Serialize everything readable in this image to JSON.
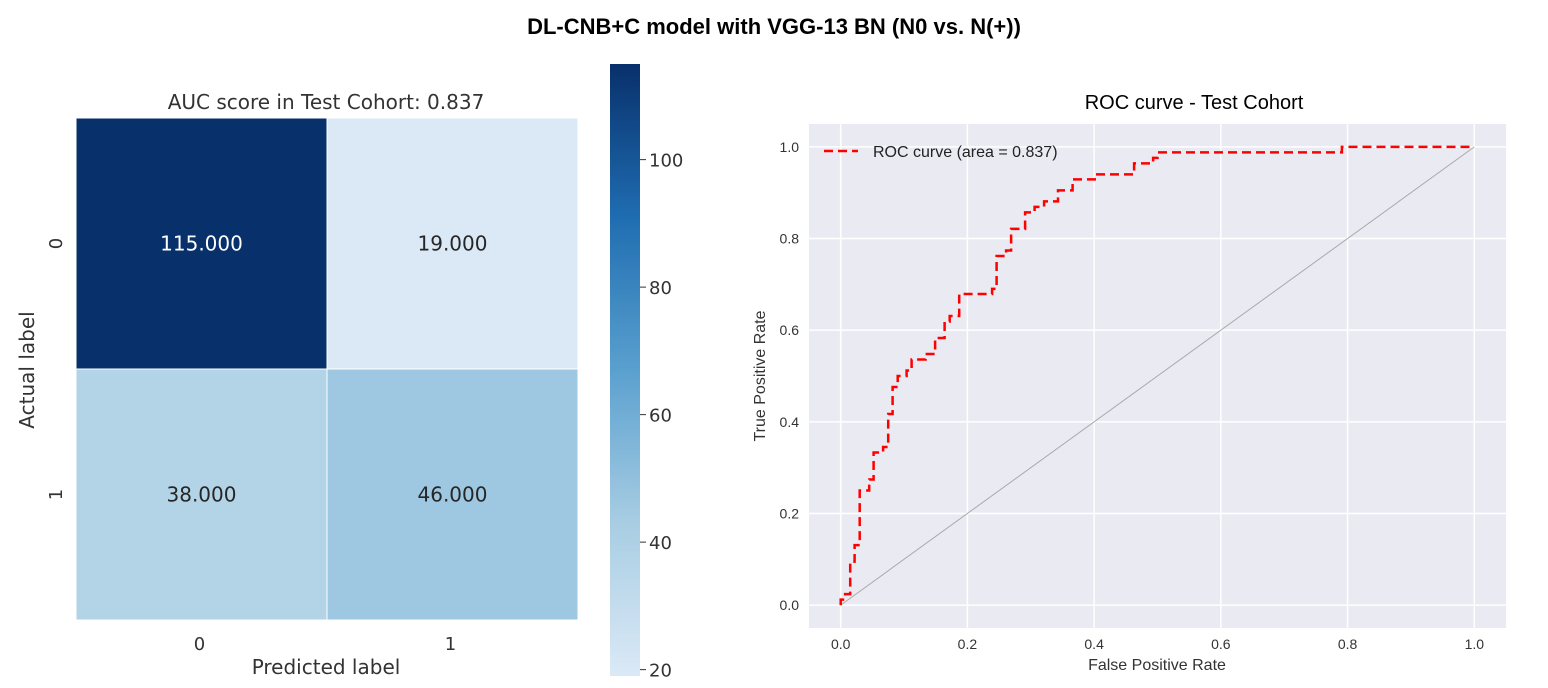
{
  "figure": {
    "title": "DL-CNB+C model with VGG-13 BN (N0 vs. N(+))"
  },
  "chart_data": [
    {
      "type": "heatmap",
      "title": "AUC score in Test Cohort: 0.837",
      "xlabel": "Predicted label",
      "ylabel": "Actual label",
      "x_categories": [
        "0",
        "1"
      ],
      "y_categories": [
        "0",
        "1"
      ],
      "values": [
        [
          115,
          19
        ],
        [
          38,
          46
        ]
      ],
      "cell_labels": [
        [
          "115.000",
          "19.000"
        ],
        [
          "38.000",
          "46.000"
        ]
      ],
      "colorbar": {
        "range": [
          19,
          115
        ],
        "ticks": [
          20,
          40,
          60,
          80,
          100
        ],
        "tick_labels": [
          "20",
          "40",
          "60",
          "80",
          "100"
        ],
        "colormap": "Blues"
      },
      "cell_text_colors": {
        "dark_cell": "#ffffff",
        "light_cell": "#262626"
      }
    },
    {
      "type": "line",
      "title": "ROC curve - Test Cohort",
      "xlabel": "False Positive Rate",
      "ylabel": "True Positive Rate",
      "xlim": [
        -0.05,
        1.05
      ],
      "ylim": [
        -0.05,
        1.05
      ],
      "xticks": [
        0.0,
        0.2,
        0.4,
        0.6,
        0.8,
        1.0
      ],
      "xtick_labels": [
        "0.0",
        "0.2",
        "0.4",
        "0.6",
        "0.8",
        "1.0"
      ],
      "yticks": [
        0.0,
        0.2,
        0.4,
        0.6,
        0.8,
        1.0
      ],
      "ytick_labels": [
        "0.0",
        "0.2",
        "0.4",
        "0.6",
        "0.8",
        "1.0"
      ],
      "grid": true,
      "legend": "top-left",
      "background": "#eaeaf2",
      "series": [
        {
          "name": "ROC curve (area = 0.837)",
          "color": "#ff0000",
          "style": "dashed",
          "x": [
            0.0,
            0.0,
            0.007,
            0.007,
            0.015,
            0.015,
            0.022,
            0.022,
            0.03,
            0.03,
            0.045,
            0.045,
            0.052,
            0.052,
            0.067,
            0.067,
            0.075,
            0.075,
            0.082,
            0.082,
            0.09,
            0.09,
            0.104,
            0.104,
            0.112,
            0.112,
            0.134,
            0.134,
            0.149,
            0.149,
            0.164,
            0.164,
            0.172,
            0.172,
            0.187,
            0.187,
            0.239,
            0.239,
            0.246,
            0.246,
            0.261,
            0.261,
            0.269,
            0.269,
            0.291,
            0.291,
            0.306,
            0.306,
            0.321,
            0.321,
            0.343,
            0.343,
            0.366,
            0.366,
            0.403,
            0.403,
            0.463,
            0.463,
            0.493,
            0.493,
            0.5,
            0.5,
            0.642,
            0.642,
            0.791,
            0.791,
            1.0
          ],
          "y": [
            0.0,
            0.012,
            0.012,
            0.024,
            0.024,
            0.095,
            0.095,
            0.131,
            0.131,
            0.25,
            0.25,
            0.274,
            0.274,
            0.333,
            0.333,
            0.345,
            0.345,
            0.417,
            0.417,
            0.476,
            0.476,
            0.5,
            0.5,
            0.512,
            0.512,
            0.536,
            0.536,
            0.548,
            0.548,
            0.583,
            0.583,
            0.619,
            0.619,
            0.631,
            0.631,
            0.679,
            0.679,
            0.69,
            0.69,
            0.762,
            0.762,
            0.774,
            0.774,
            0.821,
            0.821,
            0.857,
            0.857,
            0.869,
            0.869,
            0.881,
            0.881,
            0.905,
            0.905,
            0.929,
            0.929,
            0.94,
            0.94,
            0.964,
            0.964,
            0.976,
            0.976,
            0.988,
            0.988,
            0.988,
            0.988,
            1.0,
            1.0
          ]
        },
        {
          "name": "",
          "color": "#aaaaaa",
          "style": "solid",
          "x": [
            0.0,
            1.0
          ],
          "y": [
            0.0,
            1.0
          ]
        }
      ]
    }
  ]
}
